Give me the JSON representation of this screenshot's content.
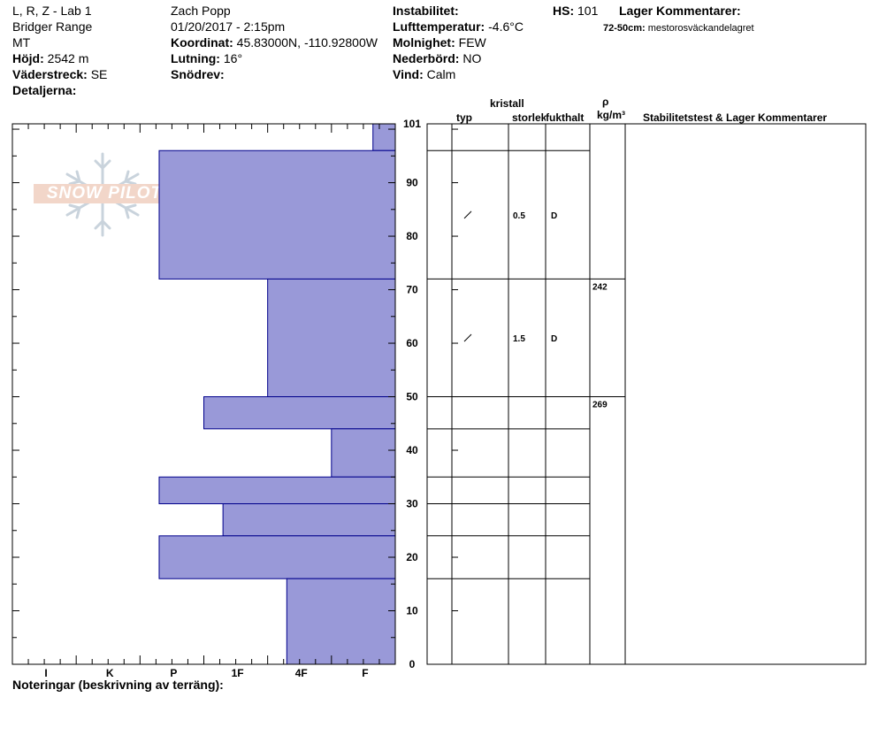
{
  "header": {
    "site": "L, R, Z - Lab 1",
    "range": "Bridger Range",
    "state": "MT",
    "elevation_label": "Höjd:",
    "elevation": "2542 m",
    "aspect_label": "Väderstreck:",
    "aspect": "SE",
    "details_label": "Detaljerna:",
    "observer": "Zach Popp",
    "datetime": "01/20/2017 - 2:15pm",
    "coord_label": "Koordinat:",
    "coord": "45.83000N, -110.92800W",
    "slope_label": "Lutning:",
    "slope": "16°",
    "drift_label": "Snödrev:",
    "instability_label": "Instabilitet:",
    "airtemp_label": "Lufttemperatur:",
    "airtemp": "-4.6°C",
    "sky_label": "Molnighet:",
    "sky": "FEW",
    "precip_label": "Nederbörd:",
    "precip": "NO",
    "wind_label": "Vind:",
    "wind": "Calm",
    "hs_label": "HS:",
    "hs": "101",
    "layer_comments_label": "Lager Kommentarer:",
    "layer_comment_range": "72-50cm:",
    "layer_comment_text": "mestorosväckandelagret"
  },
  "table_headers": {
    "crystal": "kristall",
    "type": "typ",
    "size": "storlek",
    "moisture": "fukthalt",
    "rho": "ρ",
    "density_unit": "kg/m³",
    "stability": "Stabilitetstest & Lager Kommentarer"
  },
  "logo_text": "SNOW PILOT",
  "notes_label": "Noteringar (beskrivning av terräng):",
  "chart_data": {
    "type": "bar",
    "orientation": "horizontal",
    "title": "",
    "y_range": [
      0,
      101
    ],
    "y_ticks": [
      0,
      10,
      20,
      30,
      40,
      50,
      60,
      70,
      80,
      90,
      101
    ],
    "x_categories": [
      "I",
      "K",
      "P",
      "1F",
      "4F",
      "F"
    ],
    "hardness_scale_max": 6,
    "fill_color": "#9999d8",
    "edge_color": "#00008b",
    "layers": [
      {
        "bottom": 96,
        "top": 101,
        "hardness": 0.35
      },
      {
        "bottom": 72,
        "top": 96,
        "hardness": 3.7
      },
      {
        "bottom": 50,
        "top": 72,
        "hardness": 2.0
      },
      {
        "bottom": 44,
        "top": 50,
        "hardness": 3.0
      },
      {
        "bottom": 35,
        "top": 44,
        "hardness": 1.0
      },
      {
        "bottom": 30,
        "top": 35,
        "hardness": 3.7
      },
      {
        "bottom": 24,
        "top": 30,
        "hardness": 2.7
      },
      {
        "bottom": 16,
        "top": 24,
        "hardness": 3.7
      },
      {
        "bottom": 0,
        "top": 16,
        "hardness": 1.7
      }
    ],
    "table_layer_lines": [
      101,
      96,
      72,
      50,
      44,
      35,
      30,
      24,
      16
    ],
    "crystal_rows": [
      {
        "height": 84,
        "size": "0.5",
        "moisture": "D"
      },
      {
        "height": 61,
        "size": "1.5",
        "moisture": "D"
      }
    ],
    "densities": [
      {
        "height": 72,
        "value": "242"
      },
      {
        "height": 50,
        "value": "269"
      }
    ]
  }
}
